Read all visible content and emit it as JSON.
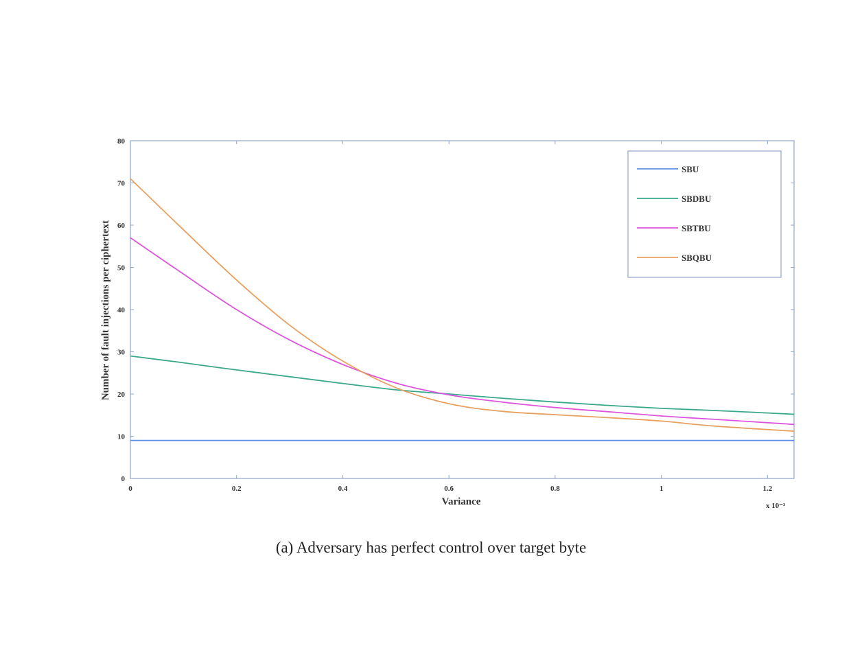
{
  "caption": "(a) Adversary has perfect control over target byte",
  "chart_data": {
    "type": "line",
    "title": "",
    "xlabel": "Variance",
    "ylabel": "Number of fault injections per ciphertext",
    "x_multiplier": "x 10⁻³",
    "xlim": [
      0,
      1.25
    ],
    "ylim": [
      0,
      80
    ],
    "xticks": [
      0,
      0.2,
      0.4,
      0.6,
      0.8,
      1,
      1.2
    ],
    "xtick_labels": [
      "0",
      "0.2",
      "0.4",
      "0.6",
      "0.8",
      "1",
      "1.2"
    ],
    "yticks": [
      0,
      10,
      20,
      30,
      40,
      50,
      60,
      70,
      80
    ],
    "ytick_labels": [
      "0",
      "10",
      "20",
      "30",
      "40",
      "50",
      "60",
      "70",
      "80"
    ],
    "grid": false,
    "legend_position": "top-right",
    "x": [
      0,
      0.1,
      0.2,
      0.3,
      0.4,
      0.5,
      0.6,
      0.7,
      0.8,
      0.9,
      1.0,
      1.1,
      1.25
    ],
    "series": [
      {
        "name": "SBU",
        "color": "#5b8ee6",
        "values": [
          9,
          9,
          9,
          9,
          9,
          9,
          9,
          9,
          9,
          9,
          9,
          9,
          9
        ]
      },
      {
        "name": "SBDBU",
        "color": "#3aa88a",
        "values": [
          29,
          27.4,
          25.7,
          24.1,
          22.5,
          21,
          20,
          19,
          18.1,
          17.3,
          16.6,
          16.1,
          15.2
        ]
      },
      {
        "name": "SBTBU",
        "color": "#dd55dd",
        "values": [
          57,
          48.4,
          40,
          32.8,
          27,
          22.6,
          19.8,
          18.1,
          16.8,
          15.8,
          14.8,
          14,
          12.8
        ]
      },
      {
        "name": "SBQBU",
        "color": "#e8a060",
        "values": [
          71,
          58.9,
          47,
          36.3,
          27.8,
          21.5,
          17.7,
          15.9,
          15.1,
          14.4,
          13.6,
          12.4,
          11.2
        ]
      }
    ]
  }
}
